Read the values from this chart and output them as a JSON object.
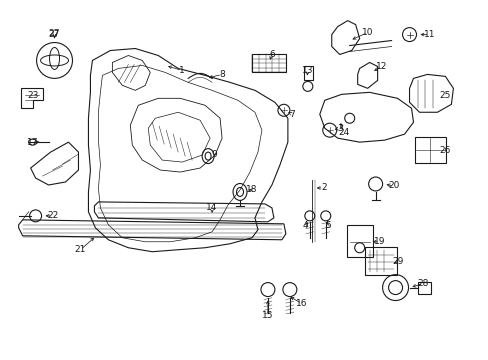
{
  "background_color": "#ffffff",
  "line_color": "#1a1a1a",
  "text_color": "#1a1a1a",
  "fig_width": 4.89,
  "fig_height": 3.6,
  "dpi": 100,
  "font_size": 6.5,
  "line_width": 0.8
}
